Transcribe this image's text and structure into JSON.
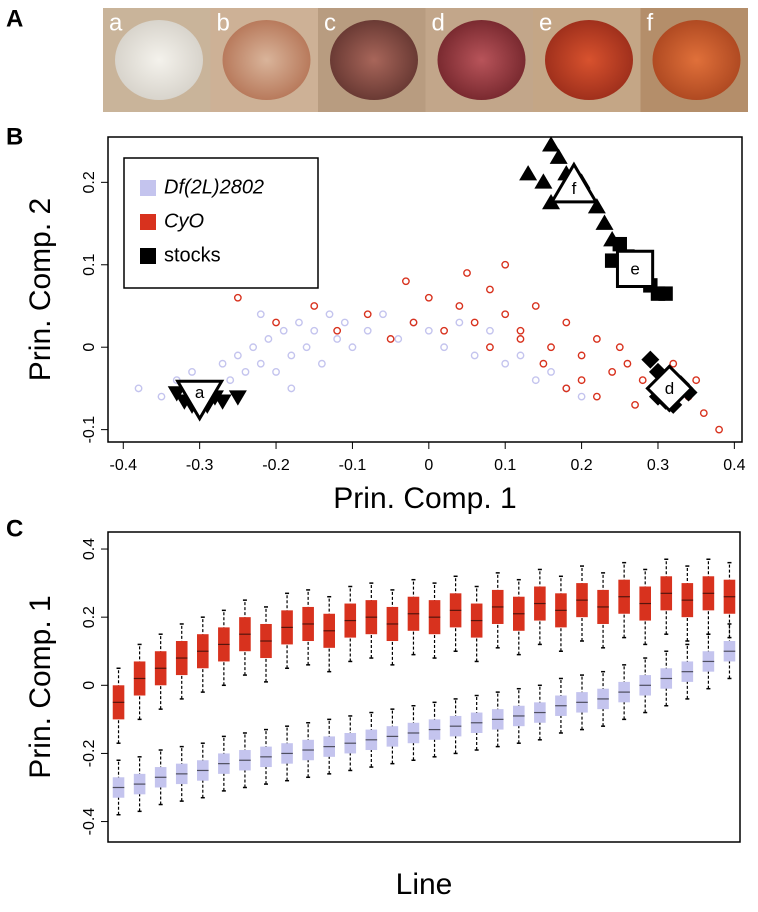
{
  "panel_a": {
    "letter": "A",
    "labels": [
      "a",
      "b",
      "c",
      "d",
      "e",
      "f"
    ]
  },
  "chart_data": [
    {
      "type": "scatter",
      "panel": "B",
      "xlabel": "Prin. Comp. 1",
      "ylabel": "Prin. Comp. 2",
      "xlim": [
        -0.42,
        0.41
      ],
      "ylim": [
        -0.115,
        0.255
      ],
      "xticks": [
        -0.4,
        -0.3,
        -0.2,
        -0.1,
        0,
        0.1,
        0.2,
        0.3,
        0.4
      ],
      "yticks": [
        -0.1,
        0,
        0.1,
        0.2
      ],
      "legend": "upper left",
      "series": [
        {
          "name": "Df(2L)2802",
          "font_style": "italic",
          "color": "#c4c4ee",
          "x": [
            -0.38,
            -0.35,
            -0.33,
            -0.31,
            -0.29,
            -0.27,
            -0.26,
            -0.25,
            -0.24,
            -0.23,
            -0.22,
            -0.21,
            -0.2,
            -0.19,
            -0.18,
            -0.17,
            -0.16,
            -0.15,
            -0.14,
            -0.13,
            -0.12,
            -0.11,
            -0.1,
            -0.08,
            -0.06,
            -0.04,
            -0.02,
            0,
            0.02,
            0.04,
            0.06,
            0.08,
            0.1,
            0.12,
            0.14,
            0.16,
            0.18,
            0.2,
            -0.22,
            -0.18
          ],
          "y": [
            -0.05,
            -0.06,
            -0.04,
            -0.03,
            -0.05,
            -0.02,
            -0.04,
            -0.01,
            -0.03,
            0,
            -0.02,
            0.01,
            -0.03,
            0.02,
            -0.01,
            0.03,
            0,
            0.02,
            -0.02,
            0.04,
            0.01,
            0.03,
            0,
            0.02,
            0.04,
            0.01,
            0.03,
            0.02,
            0,
            0.03,
            -0.01,
            0.02,
            -0.02,
            -0.01,
            -0.04,
            -0.03,
            -0.05,
            -0.06,
            0.04,
            -0.05
          ]
        },
        {
          "name": "CyO",
          "font_style": "italic",
          "color": "#d8321e",
          "x": [
            -0.25,
            -0.2,
            -0.15,
            -0.12,
            -0.08,
            -0.05,
            -0.02,
            0,
            0.02,
            0.04,
            0.06,
            0.08,
            0.1,
            0.12,
            0.14,
            0.16,
            0.18,
            0.2,
            0.22,
            0.24,
            0.26,
            0.28,
            0.3,
            0.32,
            0.34,
            0.36,
            0.38,
            0.05,
            0.1,
            0.15,
            0.2,
            0.25,
            0.3,
            0.12,
            0.18,
            0.22,
            -0.03,
            0.08,
            0.27,
            0.35
          ],
          "y": [
            0.06,
            0.03,
            0.05,
            0.02,
            0.04,
            0.01,
            0.03,
            0.06,
            0.02,
            0.05,
            0.03,
            0.07,
            0.04,
            0.02,
            0.05,
            0,
            0.03,
            -0.01,
            0.01,
            -0.03,
            -0.02,
            -0.04,
            -0.05,
            -0.02,
            -0.06,
            -0.08,
            -0.1,
            0.09,
            0.1,
            -0.02,
            -0.04,
            0,
            -0.03,
            0.01,
            -0.05,
            -0.06,
            0.08,
            0,
            -0.07,
            -0.04
          ]
        },
        {
          "name": "stocks",
          "color": "#000000",
          "groups": [
            {
              "label": "a",
              "marker": "triangle-down",
              "center": [
                -0.3,
                -0.06
              ],
              "x": [
                -0.33,
                -0.32,
                -0.31,
                -0.29,
                -0.28,
                -0.27,
                -0.25
              ],
              "y": [
                -0.055,
                -0.065,
                -0.07,
                -0.07,
                -0.06,
                -0.065,
                -0.06
              ]
            },
            {
              "label": "f",
              "marker": "triangle-up",
              "center": [
                0.19,
                0.195
              ],
              "x": [
                0.13,
                0.15,
                0.16,
                0.17,
                0.18,
                0.16,
                0.2,
                0.22,
                0.23,
                0.24
              ],
              "y": [
                0.21,
                0.2,
                0.245,
                0.23,
                0.21,
                0.175,
                0.2,
                0.17,
                0.15,
                0.13
              ]
            },
            {
              "label": "e",
              "marker": "square",
              "center": [
                0.27,
                0.095
              ],
              "x": [
                0.25,
                0.26,
                0.24,
                0.29,
                0.3,
                0.31,
                0.28
              ],
              "y": [
                0.125,
                0.11,
                0.105,
                0.075,
                0.065,
                0.065,
                0.085
              ]
            },
            {
              "label": "d",
              "marker": "diamond",
              "center": [
                0.315,
                -0.05
              ],
              "x": [
                0.29,
                0.3,
                0.31,
                0.32,
                0.34,
                0.3,
                0.33
              ],
              "y": [
                -0.015,
                -0.03,
                -0.065,
                -0.07,
                -0.055,
                -0.06,
                -0.045
              ]
            }
          ]
        }
      ]
    },
    {
      "type": "box",
      "panel": "C",
      "xlabel": "Line",
      "ylabel": "Prin. Comp. 1",
      "ylim": [
        -0.46,
        0.45
      ],
      "yticks": [
        -0.4,
        -0.2,
        0,
        0.2,
        0.4
      ],
      "categories": [
        null,
        null,
        null,
        null,
        null,
        null,
        null,
        null,
        null,
        null,
        null,
        null,
        null,
        null,
        null,
        null,
        null,
        null,
        null,
        null,
        null,
        null,
        null,
        null,
        null,
        null,
        null,
        null,
        null,
        null
      ],
      "series": [
        {
          "color": "#c4c4ee",
          "low": [
            -0.38,
            -0.37,
            -0.35,
            -0.34,
            -0.33,
            -0.31,
            -0.3,
            -0.29,
            -0.28,
            -0.27,
            -0.26,
            -0.25,
            -0.24,
            -0.23,
            -0.22,
            -0.21,
            -0.2,
            -0.19,
            -0.18,
            -0.17,
            -0.16,
            -0.14,
            -0.13,
            -0.12,
            -0.1,
            -0.08,
            -0.06,
            -0.04,
            -0.01,
            0.02
          ],
          "q1": [
            -0.33,
            -0.32,
            -0.3,
            -0.29,
            -0.28,
            -0.26,
            -0.25,
            -0.24,
            -0.23,
            -0.22,
            -0.21,
            -0.2,
            -0.19,
            -0.18,
            -0.17,
            -0.16,
            -0.15,
            -0.14,
            -0.13,
            -0.12,
            -0.11,
            -0.09,
            -0.08,
            -0.07,
            -0.05,
            -0.03,
            -0.01,
            0.01,
            0.04,
            0.07
          ],
          "median": [
            -0.3,
            -0.29,
            -0.27,
            -0.26,
            -0.25,
            -0.23,
            -0.22,
            -0.21,
            -0.2,
            -0.19,
            -0.18,
            -0.17,
            -0.16,
            -0.15,
            -0.14,
            -0.13,
            -0.12,
            -0.11,
            -0.1,
            -0.09,
            -0.08,
            -0.06,
            -0.05,
            -0.04,
            -0.02,
            0.0,
            0.02,
            0.04,
            0.07,
            0.1
          ],
          "q3": [
            -0.27,
            -0.26,
            -0.24,
            -0.23,
            -0.22,
            -0.2,
            -0.19,
            -0.18,
            -0.17,
            -0.16,
            -0.15,
            -0.14,
            -0.13,
            -0.12,
            -0.11,
            -0.1,
            -0.09,
            -0.08,
            -0.07,
            -0.06,
            -0.05,
            -0.03,
            -0.02,
            -0.01,
            0.01,
            0.03,
            0.05,
            0.07,
            0.1,
            0.13
          ],
          "high": [
            -0.22,
            -0.21,
            -0.19,
            -0.18,
            -0.17,
            -0.15,
            -0.14,
            -0.13,
            -0.12,
            -0.11,
            -0.1,
            -0.09,
            -0.08,
            -0.07,
            -0.06,
            -0.05,
            -0.04,
            -0.03,
            -0.02,
            -0.01,
            0.0,
            0.02,
            0.03,
            0.04,
            0.06,
            0.08,
            0.1,
            0.12,
            0.15,
            0.18
          ]
        },
        {
          "color": "#d8321e",
          "low": [
            -0.17,
            -0.1,
            -0.07,
            -0.04,
            -0.02,
            0.0,
            0.03,
            0.01,
            0.05,
            0.06,
            0.04,
            0.07,
            0.08,
            0.06,
            0.09,
            0.08,
            0.1,
            0.07,
            0.11,
            0.09,
            0.12,
            0.1,
            0.13,
            0.11,
            0.14,
            0.12,
            0.15,
            0.13,
            0.15,
            0.14
          ],
          "q1": [
            -0.1,
            -0.03,
            0.0,
            0.03,
            0.05,
            0.07,
            0.1,
            0.08,
            0.12,
            0.13,
            0.11,
            0.14,
            0.15,
            0.13,
            0.16,
            0.15,
            0.17,
            0.14,
            0.18,
            0.16,
            0.19,
            0.17,
            0.2,
            0.18,
            0.21,
            0.19,
            0.22,
            0.2,
            0.22,
            0.21
          ],
          "median": [
            -0.05,
            0.02,
            0.05,
            0.08,
            0.1,
            0.12,
            0.15,
            0.13,
            0.17,
            0.18,
            0.16,
            0.19,
            0.2,
            0.18,
            0.21,
            0.2,
            0.22,
            0.19,
            0.23,
            0.21,
            0.24,
            0.22,
            0.25,
            0.23,
            0.26,
            0.24,
            0.27,
            0.25,
            0.27,
            0.26
          ],
          "q3": [
            0.0,
            0.07,
            0.1,
            0.13,
            0.15,
            0.17,
            0.2,
            0.18,
            0.22,
            0.23,
            0.21,
            0.24,
            0.25,
            0.23,
            0.26,
            0.25,
            0.27,
            0.24,
            0.28,
            0.26,
            0.29,
            0.27,
            0.3,
            0.28,
            0.31,
            0.29,
            0.32,
            0.3,
            0.32,
            0.31
          ],
          "high": [
            0.05,
            0.12,
            0.15,
            0.18,
            0.2,
            0.22,
            0.25,
            0.23,
            0.27,
            0.28,
            0.26,
            0.29,
            0.3,
            0.28,
            0.31,
            0.3,
            0.32,
            0.29,
            0.33,
            0.31,
            0.34,
            0.32,
            0.35,
            0.33,
            0.36,
            0.34,
            0.37,
            0.35,
            0.37,
            0.36
          ]
        }
      ]
    }
  ]
}
